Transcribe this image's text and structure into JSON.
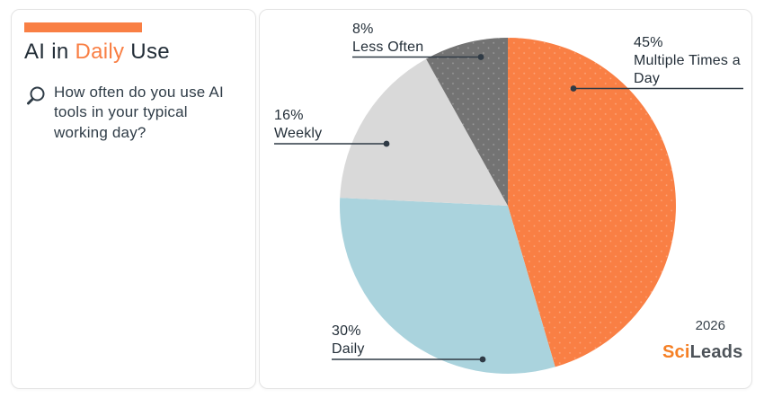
{
  "left_panel": {
    "title": {
      "pre": "AI in ",
      "highlight": "Daily",
      "post": " Use"
    },
    "question": "How often do you use AI tools in your typical working day?",
    "accent_color": "#F97F44",
    "icon": "magnifier-icon"
  },
  "chart_panel": {
    "year": "2026",
    "logo": {
      "sci": "Sci",
      "leads": "Leads"
    },
    "leader_color": "#2F3A45"
  },
  "chart_data": {
    "type": "pie",
    "title": "AI in Daily Use",
    "question": "How often do you use AI tools in your typical working day?",
    "start_angle_deg": 0,
    "direction": "clockwise",
    "legend_position": "callout-labels",
    "slices": [
      {
        "label": "Multiple Times a Day",
        "pct_label": "45%",
        "value": 45,
        "color": "#F97F44",
        "textured": true
      },
      {
        "label": "Daily",
        "pct_label": "30%",
        "value": 30,
        "color": "#AAD3DD",
        "textured": false
      },
      {
        "label": "Weekly",
        "pct_label": "16%",
        "value": 16,
        "color": "#D9D9D9",
        "textured": false
      },
      {
        "label": "Less Often",
        "pct_label": "8%",
        "value": 8,
        "color": "#737373",
        "textured": true
      }
    ]
  }
}
